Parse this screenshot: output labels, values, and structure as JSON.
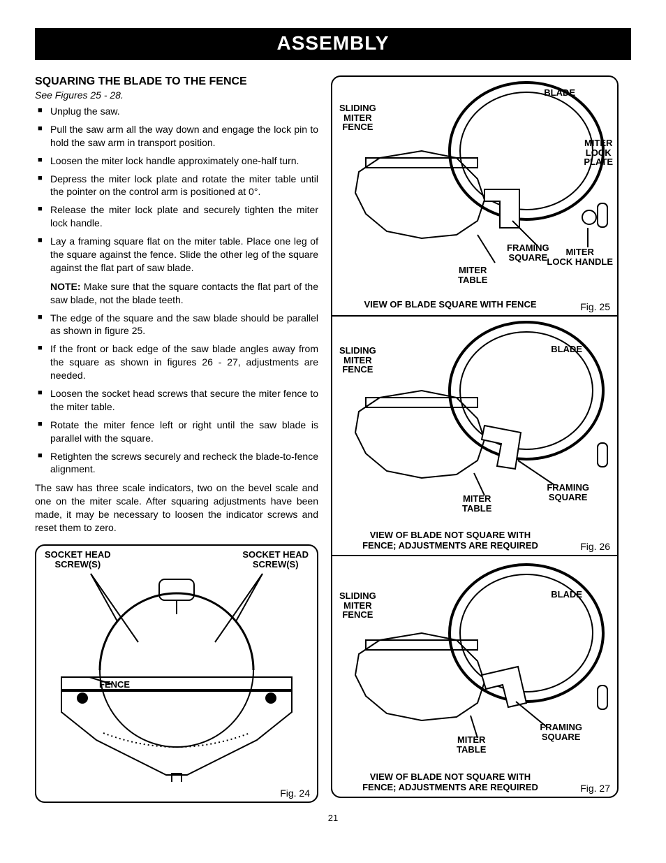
{
  "banner": "ASSEMBLY",
  "section_title": "SQUARING THE BLADE TO THE FENCE",
  "see_figures": "See Figures 25 - 28.",
  "steps": [
    "Unplug the saw.",
    "Pull the saw arm all the way down and engage the lock pin to hold the saw arm in transport position.",
    "Loosen the miter lock handle approximately one-half turn.",
    "Depress the miter lock plate and rotate the miter table until the pointer on the control arm is positioned at 0°.",
    "Release the miter lock plate and securely tighten the miter lock handle.",
    "Lay a framing square flat on the miter table. Place one leg of the square against the fence. Slide the other leg of the square against the flat part of saw blade."
  ],
  "note_label": "NOTE:",
  "note_text": " Make sure that the square contacts the flat part of the saw blade, not the blade teeth.",
  "steps2": [
    "The edge of the square and the saw blade should be parallel as shown in figure 25.",
    "If the front or back edge of the saw blade angles away from the square as shown in figures 26 - 27, adjustments are needed.",
    "Loosen the socket head screws that secure the miter fence to the miter table.",
    "Rotate the miter fence left or right until the saw blade is parallel with the square.",
    "Retighten the screws securely and recheck the blade-to-fence alignment."
  ],
  "closing_para": "The saw has three scale indicators, two on the bevel scale and one on the miter scale. After squaring adjustments have been made, it may be necessary to loosen the indicator screws and reset them to zero.",
  "fig24": {
    "callouts": {
      "socket_left": "SOCKET HEAD\nSCREW(S)",
      "socket_right": "SOCKET HEAD\nSCREW(S)",
      "fence": "FENCE"
    },
    "label": "Fig. 24"
  },
  "fig25": {
    "callouts": {
      "sliding": "SLIDING\nMITER\nFENCE",
      "blade": "BLADE",
      "lock_plate": "MITER\nLOCK\nPLATE",
      "framing": "FRAMING\nSQUARE",
      "lock_handle": "MITER\nLOCK HANDLE",
      "miter_table": "MITER\nTABLE"
    },
    "caption": "VIEW OF BLADE SQUARE WITH FENCE",
    "label": "Fig. 25"
  },
  "fig26": {
    "callouts": {
      "sliding": "SLIDING\nMITER\nFENCE",
      "blade": "BLADE",
      "framing": "FRAMING\nSQUARE",
      "miter_table": "MITER\nTABLE"
    },
    "caption": "VIEW OF BLADE NOT SQUARE WITH\nFENCE; ADJUSTMENTS ARE REQUIRED",
    "label": "Fig. 26"
  },
  "fig27": {
    "callouts": {
      "sliding": "SLIDING\nMITER\nFENCE",
      "blade": "BLADE",
      "framing": "FRAMING\nSQUARE",
      "miter_table": "MITER\nTABLE"
    },
    "caption": "VIEW OF BLADE NOT SQUARE WITH\nFENCE; ADJUSTMENTS ARE REQUIRED",
    "label": "Fig. 27"
  },
  "page_number": "21",
  "colors": {
    "bg": "#ffffff",
    "text": "#000000",
    "banner_bg": "#000000",
    "banner_fg": "#ffffff"
  }
}
